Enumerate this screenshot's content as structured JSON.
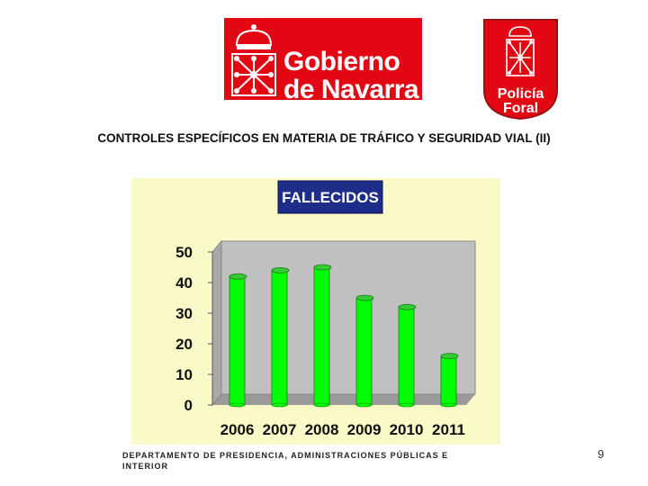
{
  "logos": {
    "government": {
      "line1": "Gobierno",
      "line2": "de Navarra"
    },
    "police": {
      "line1": "Policía",
      "line2": "Foral"
    }
  },
  "page_title": "CONTROLES ESPECÍFICOS EN MATERIA DE TRÁFICO Y SEGURIDAD VIAL (II)",
  "chart_data": {
    "type": "bar",
    "title": "FALLECIDOS",
    "categories": [
      "2006",
      "2007",
      "2008",
      "2009",
      "2010",
      "2011"
    ],
    "values": [
      42,
      44,
      45,
      35,
      32,
      16
    ],
    "ylim": [
      0,
      50
    ],
    "yticks": [
      0,
      10,
      20,
      30,
      40,
      50
    ],
    "grid": false,
    "legend": "none",
    "colors": {
      "bar": "#00ff00",
      "bar_top": "#33cc33",
      "panel_background": "#fafac8",
      "plot_background": "#c0c0c0",
      "title_background": "#1f2d8a"
    }
  },
  "footer": {
    "department": "DEPARTAMENTO DE PRESIDENCIA, ADMINISTRACIONES PÚBLICAS E INTERIOR"
  },
  "page_number": "9"
}
